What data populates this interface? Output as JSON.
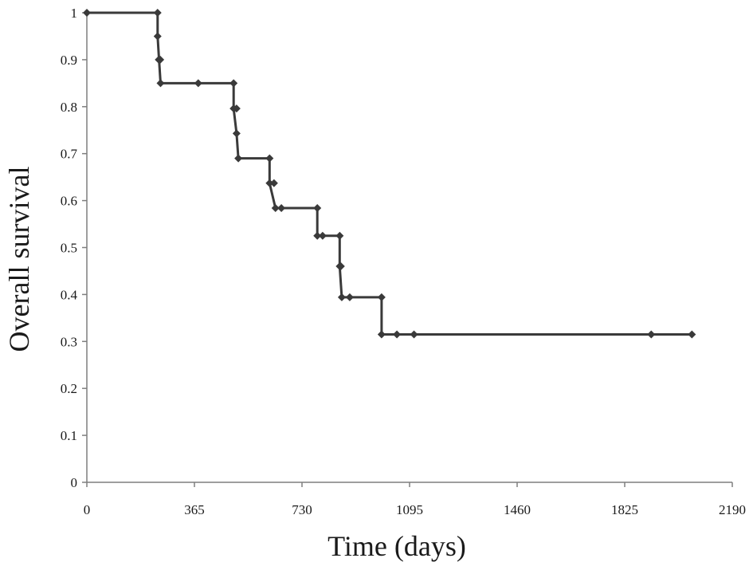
{
  "chart_data": {
    "type": "line",
    "title": "",
    "xlabel": "Time (days)",
    "ylabel": "Overall  survival",
    "xlim": [
      0,
      2190
    ],
    "ylim": [
      0,
      1
    ],
    "x_ticks": [
      0,
      365,
      730,
      1095,
      1460,
      1825,
      2190
    ],
    "x_tick_labels": [
      "0",
      "365",
      "730",
      "1095",
      "1460",
      "1825",
      "2190"
    ],
    "y_ticks": [
      0,
      0.1,
      0.2,
      0.3,
      0.4,
      0.5,
      0.6,
      0.7,
      0.8,
      0.9,
      1
    ],
    "y_tick_labels": [
      "0",
      "0.1",
      "0.2",
      "0.3",
      "0.4",
      "0.5",
      "0.6",
      "0.7",
      "0.8",
      "0.9",
      "1"
    ],
    "grid": false,
    "legend": "none",
    "line_color": "#3a3a3a",
    "step_curve": [
      {
        "x": 0,
        "y": 1
      },
      {
        "x": 240,
        "y": 1
      },
      {
        "x": 240,
        "y": 0.95
      },
      {
        "x": 245,
        "y": 0.9
      },
      {
        "x": 250,
        "y": 0.85
      },
      {
        "x": 498,
        "y": 0.85
      },
      {
        "x": 498,
        "y": 0.796
      },
      {
        "x": 508,
        "y": 0.743
      },
      {
        "x": 514,
        "y": 0.69
      },
      {
        "x": 620,
        "y": 0.69
      },
      {
        "x": 620,
        "y": 0.637
      },
      {
        "x": 640,
        "y": 0.584
      },
      {
        "x": 782,
        "y": 0.584
      },
      {
        "x": 782,
        "y": 0.525
      },
      {
        "x": 858,
        "y": 0.525
      },
      {
        "x": 858,
        "y": 0.46
      },
      {
        "x": 865,
        "y": 0.394
      },
      {
        "x": 1000,
        "y": 0.394
      },
      {
        "x": 1000,
        "y": 0.315
      },
      {
        "x": 2053,
        "y": 0.315
      }
    ],
    "markers": [
      {
        "x": 0,
        "y": 1
      },
      {
        "x": 240,
        "y": 1
      },
      {
        "x": 240,
        "y": 0.95
      },
      {
        "x": 244,
        "y": 0.9
      },
      {
        "x": 249,
        "y": 0.9
      },
      {
        "x": 250,
        "y": 0.85
      },
      {
        "x": 378,
        "y": 0.85
      },
      {
        "x": 498,
        "y": 0.85
      },
      {
        "x": 498,
        "y": 0.796
      },
      {
        "x": 508,
        "y": 0.796
      },
      {
        "x": 508,
        "y": 0.743
      },
      {
        "x": 514,
        "y": 0.69
      },
      {
        "x": 620,
        "y": 0.69
      },
      {
        "x": 620,
        "y": 0.637
      },
      {
        "x": 635,
        "y": 0.637
      },
      {
        "x": 640,
        "y": 0.584
      },
      {
        "x": 660,
        "y": 0.584
      },
      {
        "x": 782,
        "y": 0.584
      },
      {
        "x": 782,
        "y": 0.525
      },
      {
        "x": 800,
        "y": 0.525
      },
      {
        "x": 858,
        "y": 0.525
      },
      {
        "x": 858,
        "y": 0.46
      },
      {
        "x": 862,
        "y": 0.46
      },
      {
        "x": 865,
        "y": 0.394
      },
      {
        "x": 892,
        "y": 0.394
      },
      {
        "x": 1000,
        "y": 0.394
      },
      {
        "x": 1000,
        "y": 0.315
      },
      {
        "x": 1052,
        "y": 0.315
      },
      {
        "x": 1110,
        "y": 0.315
      },
      {
        "x": 1915,
        "y": 0.315
      },
      {
        "x": 2053,
        "y": 0.315
      }
    ]
  }
}
